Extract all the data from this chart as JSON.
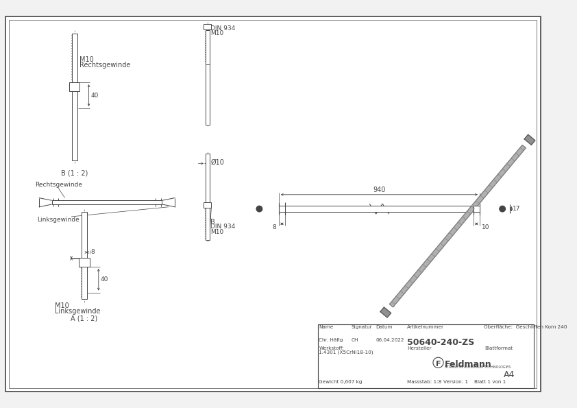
{
  "bg_color": "#f2f2f2",
  "lc": "#444444",
  "white": "#ffffff",
  "article_number": "50640-240-ZS",
  "surface": "Oberfläche:  Geschliffen Korn 240",
  "name_label": "Name",
  "signatur_label": "Signatur",
  "datum_label": "Datum",
  "artikelnummer_label": "Artikelnummer",
  "name_val": "Chr. Häfig",
  "signatur_val": "CH",
  "datum_val": "06.04.2022",
  "werkstoff_label": "Werkstoff:",
  "werkstoff_val": "1.4301 (X5CrNi18-10)",
  "hersteller_label": "Hersteller",
  "feldmann_text": "Feldmann",
  "blattformat_label": "Blattformat",
  "blattformat_val": "A4",
  "gewicht_label": "Gewicht 0,607 kg",
  "massstab_label": "Massstab: 1:8",
  "version_label": "Version: 1",
  "blatt_label": "Blatt 1 von 1"
}
